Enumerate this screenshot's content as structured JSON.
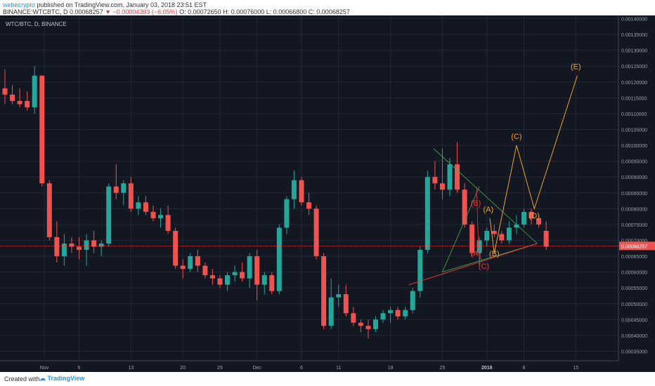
{
  "header": {
    "author": "webecrypto",
    "published_text": "published on TradingView.com, January 03, 2018 23:51 EST",
    "symbol_line": "BINANCE:WTCBTC, D",
    "price": "0.00068257",
    "change_arrow": "▼",
    "change": "−0.00004393 (−6.05%)",
    "ohlc": "O: 0.00072650  H: 0.00076000  L: 0.00066800  C: 0.00068257"
  },
  "symbol_label": "WTC/BTC, D, BINANCE",
  "footer": {
    "created_with": "Created with",
    "brand": "TradingView"
  },
  "colors": {
    "up": "#26a69a",
    "down": "#ef5350",
    "background": "#131722",
    "triangle": "#4caf50",
    "projection": "#f0a030",
    "support": "#e53935"
  },
  "chart_data": {
    "type": "candlestick",
    "symbol": "WTC/BTC",
    "exchange": "BINANCE",
    "timeframe": "D",
    "ylim": [
      0.00032,
      0.00141
    ],
    "y_ticks": [
      "0.00140000",
      "0.00135000",
      "0.00130000",
      "0.00125000",
      "0.00120000",
      "0.00115000",
      "0.00110000",
      "0.00105000",
      "0.00100000",
      "0.00095000",
      "0.00090000",
      "0.00085000",
      "0.00080000",
      "0.00075000",
      "0.00070000",
      "0.00065000",
      "0.00060000",
      "0.00055000",
      "0.00050000",
      "0.00045000",
      "0.00040000",
      "0.00035000"
    ],
    "x_ticks": [
      "Nov",
      "6",
      "13",
      "20",
      "25",
      "Dec",
      "6",
      "11",
      "18",
      "25",
      "2018",
      "8",
      "15"
    ],
    "last_price_label": "0.00068257",
    "last_price": 0.00068257,
    "candles": [
      {
        "o": 0.00118,
        "h": 0.00124,
        "l": 0.00113,
        "c": 0.00116
      },
      {
        "o": 0.00116,
        "h": 0.00119,
        "l": 0.00113,
        "c": 0.00114
      },
      {
        "o": 0.00114,
        "h": 0.00118,
        "l": 0.00112,
        "c": 0.00113
      },
      {
        "o": 0.00114,
        "h": 0.00117,
        "l": 0.00111,
        "c": 0.00112
      },
      {
        "o": 0.00112,
        "h": 0.00125,
        "l": 0.0011,
        "c": 0.00122
      },
      {
        "o": 0.00122,
        "h": 0.00122,
        "l": 0.00087,
        "c": 0.00088
      },
      {
        "o": 0.00088,
        "h": 0.00089,
        "l": 0.0007,
        "c": 0.00071
      },
      {
        "o": 0.00071,
        "h": 0.00076,
        "l": 0.00063,
        "c": 0.00065
      },
      {
        "o": 0.00065,
        "h": 0.00072,
        "l": 0.00062,
        "c": 0.00069
      },
      {
        "o": 0.00069,
        "h": 0.00071,
        "l": 0.00066,
        "c": 0.00068
      },
      {
        "o": 0.00068,
        "h": 0.00071,
        "l": 0.00064,
        "c": 0.00067
      },
      {
        "o": 0.00067,
        "h": 0.00072,
        "l": 0.00062,
        "c": 0.0007
      },
      {
        "o": 0.0007,
        "h": 0.00073,
        "l": 0.00066,
        "c": 0.00068
      },
      {
        "o": 0.00068,
        "h": 0.0007,
        "l": 0.00065,
        "c": 0.00069
      },
      {
        "o": 0.00069,
        "h": 0.00088,
        "l": 0.00068,
        "c": 0.00087
      },
      {
        "o": 0.00087,
        "h": 0.00094,
        "l": 0.00083,
        "c": 0.00085
      },
      {
        "o": 0.00085,
        "h": 0.00089,
        "l": 0.00081,
        "c": 0.00088
      },
      {
        "o": 0.00088,
        "h": 0.0009,
        "l": 0.00079,
        "c": 0.0008
      },
      {
        "o": 0.0008,
        "h": 0.00084,
        "l": 0.00078,
        "c": 0.00082
      },
      {
        "o": 0.00082,
        "h": 0.00084,
        "l": 0.00078,
        "c": 0.00079
      },
      {
        "o": 0.00079,
        "h": 0.00081,
        "l": 0.00076,
        "c": 0.00077
      },
      {
        "o": 0.00077,
        "h": 0.0008,
        "l": 0.00074,
        "c": 0.00078
      },
      {
        "o": 0.00078,
        "h": 0.00081,
        "l": 0.00072,
        "c": 0.00073
      },
      {
        "o": 0.00073,
        "h": 0.00074,
        "l": 0.00061,
        "c": 0.00062
      },
      {
        "o": 0.00062,
        "h": 0.00064,
        "l": 0.00058,
        "c": 0.00061
      },
      {
        "o": 0.00061,
        "h": 0.00066,
        "l": 0.0006,
        "c": 0.00065
      },
      {
        "o": 0.00065,
        "h": 0.00067,
        "l": 0.0006,
        "c": 0.00062
      },
      {
        "o": 0.00062,
        "h": 0.00063,
        "l": 0.00058,
        "c": 0.00059
      },
      {
        "o": 0.00059,
        "h": 0.00061,
        "l": 0.00056,
        "c": 0.00058
      },
      {
        "o": 0.00058,
        "h": 0.00059,
        "l": 0.00055,
        "c": 0.00056
      },
      {
        "o": 0.00056,
        "h": 0.0006,
        "l": 0.00054,
        "c": 0.00059
      },
      {
        "o": 0.00059,
        "h": 0.00062,
        "l": 0.00057,
        "c": 0.0006
      },
      {
        "o": 0.0006,
        "h": 0.00063,
        "l": 0.00057,
        "c": 0.00058
      },
      {
        "o": 0.00058,
        "h": 0.00066,
        "l": 0.00055,
        "c": 0.00065
      },
      {
        "o": 0.00065,
        "h": 0.00067,
        "l": 0.00051,
        "c": 0.00056
      },
      {
        "o": 0.00056,
        "h": 0.0006,
        "l": 0.00053,
        "c": 0.00059
      },
      {
        "o": 0.00059,
        "h": 0.0006,
        "l": 0.00053,
        "c": 0.00054
      },
      {
        "o": 0.00054,
        "h": 0.00075,
        "l": 0.00053,
        "c": 0.00074
      },
      {
        "o": 0.00074,
        "h": 0.00084,
        "l": 0.00072,
        "c": 0.00083
      },
      {
        "o": 0.00083,
        "h": 0.00092,
        "l": 0.0008,
        "c": 0.00089
      },
      {
        "o": 0.00089,
        "h": 0.0009,
        "l": 0.00081,
        "c": 0.00082
      },
      {
        "o": 0.00082,
        "h": 0.00085,
        "l": 0.00078,
        "c": 0.0008
      },
      {
        "o": 0.0008,
        "h": 0.00081,
        "l": 0.00064,
        "c": 0.00065
      },
      {
        "o": 0.00065,
        "h": 0.00066,
        "l": 0.00042,
        "c": 0.00043
      },
      {
        "o": 0.00043,
        "h": 0.00058,
        "l": 0.00042,
        "c": 0.00052
      },
      {
        "o": 0.00052,
        "h": 0.00056,
        "l": 0.00049,
        "c": 0.00053
      },
      {
        "o": 0.00053,
        "h": 0.00056,
        "l": 0.00046,
        "c": 0.00047
      },
      {
        "o": 0.00047,
        "h": 0.00049,
        "l": 0.00043,
        "c": 0.00044
      },
      {
        "o": 0.00044,
        "h": 0.00045,
        "l": 0.00041,
        "c": 0.00043
      },
      {
        "o": 0.00043,
        "h": 0.00045,
        "l": 0.00039,
        "c": 0.00042
      },
      {
        "o": 0.00042,
        "h": 0.00046,
        "l": 0.00041,
        "c": 0.00045
      },
      {
        "o": 0.00045,
        "h": 0.00048,
        "l": 0.00044,
        "c": 0.00047
      },
      {
        "o": 0.00047,
        "h": 0.00049,
        "l": 0.00044,
        "c": 0.00048
      },
      {
        "o": 0.00048,
        "h": 0.00049,
        "l": 0.00045,
        "c": 0.00046
      },
      {
        "o": 0.00046,
        "h": 0.00049,
        "l": 0.00045,
        "c": 0.00048
      },
      {
        "o": 0.00048,
        "h": 0.00055,
        "l": 0.00047,
        "c": 0.00054
      },
      {
        "o": 0.00054,
        "h": 0.00068,
        "l": 0.00052,
        "c": 0.00067
      },
      {
        "o": 0.00067,
        "h": 0.00092,
        "l": 0.00066,
        "c": 0.0009
      },
      {
        "o": 0.0009,
        "h": 0.00095,
        "l": 0.00086,
        "c": 0.00088
      },
      {
        "o": 0.00088,
        "h": 0.00099,
        "l": 0.00083,
        "c": 0.00086
      },
      {
        "o": 0.00086,
        "h": 0.00096,
        "l": 0.00084,
        "c": 0.00094
      },
      {
        "o": 0.00094,
        "h": 0.00101,
        "l": 0.00085,
        "c": 0.00086
      },
      {
        "o": 0.00086,
        "h": 0.00088,
        "l": 0.00074,
        "c": 0.00075
      },
      {
        "o": 0.00075,
        "h": 0.00076,
        "l": 0.00065,
        "c": 0.00066
      },
      {
        "o": 0.00066,
        "h": 0.00071,
        "l": 0.00062,
        "c": 0.0007
      },
      {
        "o": 0.0007,
        "h": 0.00074,
        "l": 0.00068,
        "c": 0.00073
      },
      {
        "o": 0.00073,
        "h": 0.00075,
        "l": 0.00071,
        "c": 0.00072
      },
      {
        "o": 0.00072,
        "h": 0.00073,
        "l": 0.00069,
        "c": 0.0007
      },
      {
        "o": 0.0007,
        "h": 0.00076,
        "l": 0.00069,
        "c": 0.00074
      },
      {
        "o": 0.00074,
        "h": 0.00078,
        "l": 0.00072,
        "c": 0.00075
      },
      {
        "o": 0.00075,
        "h": 0.0008,
        "l": 0.00074,
        "c": 0.00079
      },
      {
        "o": 0.00079,
        "h": 0.0008,
        "l": 0.00075,
        "c": 0.00077
      },
      {
        "o": 0.00077,
        "h": 0.00078,
        "l": 0.00074,
        "c": 0.00075
      },
      {
        "o": 0.00073,
        "h": 0.00076,
        "l": 0.00067,
        "c": 0.00068
      }
    ],
    "annotations": {
      "wave_labels_red": [
        "(B)",
        "(A)",
        "(C)"
      ],
      "wave_labels_orange": [
        "(A)",
        "(B)",
        "(C)",
        "(D)",
        "(E)"
      ]
    }
  }
}
